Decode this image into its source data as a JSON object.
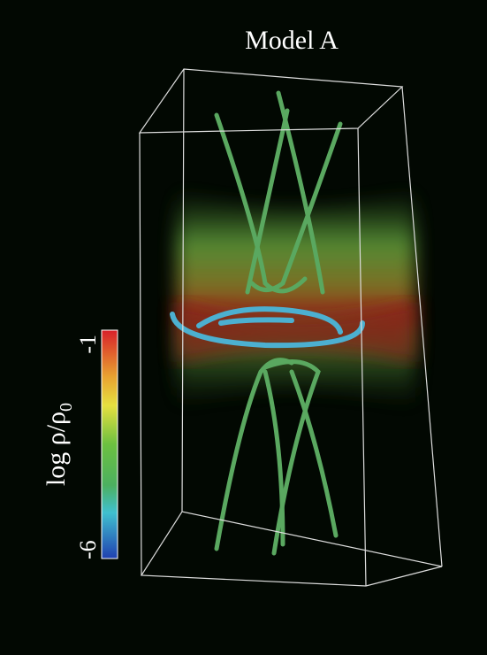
{
  "title": "Model A",
  "colorbar": {
    "label": "log ρ/ρ",
    "label_subscript": "0",
    "max": -1,
    "min": -6
  }
}
